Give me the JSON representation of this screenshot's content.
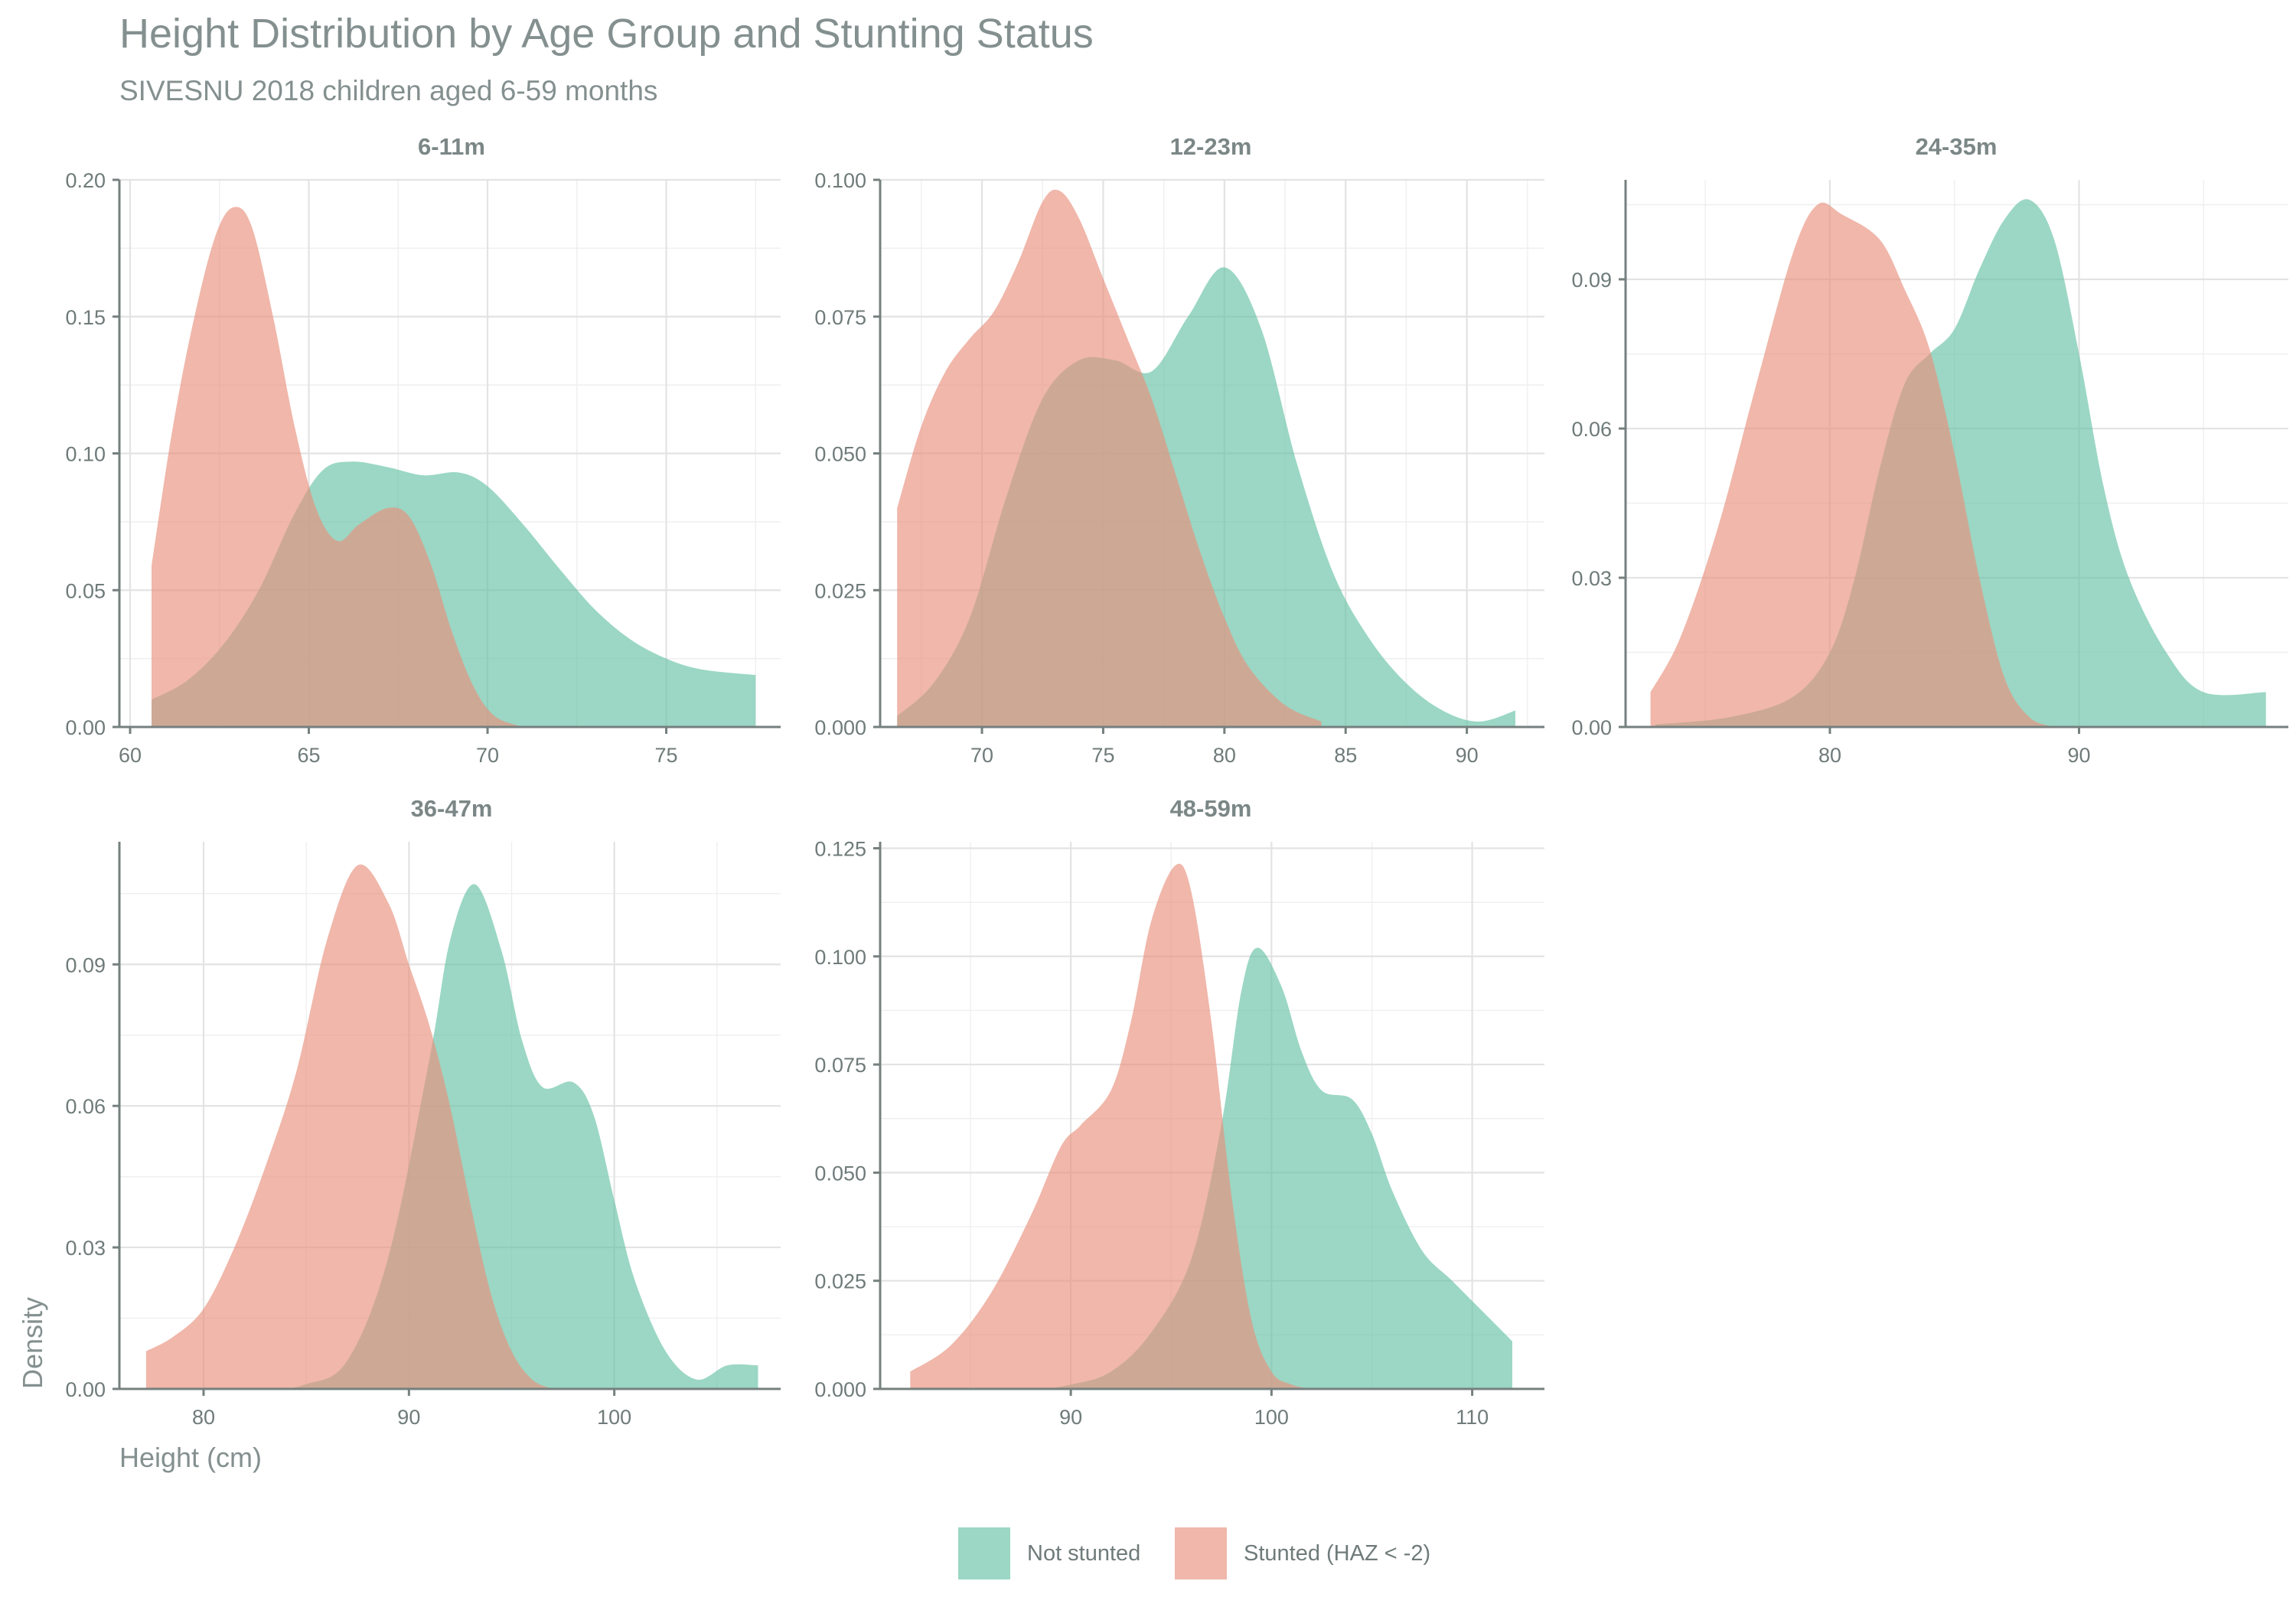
{
  "chart_data": {
    "type": "area",
    "title": "Height Distribution by Age Group and Stunting Status",
    "subtitle": "SIVESNU 2018 children aged 6-59 months",
    "xlabel": "Height (cm)",
    "ylabel": "Density",
    "grid": true,
    "legend_placement": "bottom",
    "series_names": [
      "Not stunted",
      "Stunted (HAZ < -2)"
    ],
    "colors": {
      "not_stunted": "#66c2a5",
      "stunted": "#e8907c",
      "axis": "#75807f",
      "text": "#84908f"
    },
    "panels": [
      {
        "label": "6-11m",
        "xlim": [
          59.7,
          78.2
        ],
        "ylim": [
          0,
          0.2
        ],
        "xticks": [
          60,
          65,
          70,
          75
        ],
        "yticks": [
          0,
          0.05,
          0.1,
          0.15,
          0.2
        ],
        "ytick_labels": [
          "0.00",
          "0.05",
          "0.10",
          "0.15",
          "0.20"
        ],
        "not_stunted": [
          [
            60.6,
            0.01
          ],
          [
            61.6,
            0.017
          ],
          [
            62.6,
            0.03
          ],
          [
            63.6,
            0.05
          ],
          [
            64.6,
            0.078
          ],
          [
            65.4,
            0.094
          ],
          [
            66.2,
            0.097
          ],
          [
            67.2,
            0.095
          ],
          [
            68.2,
            0.092
          ],
          [
            69.2,
            0.093
          ],
          [
            70.0,
            0.088
          ],
          [
            71.0,
            0.074
          ],
          [
            72.0,
            0.058
          ],
          [
            73.0,
            0.043
          ],
          [
            74.0,
            0.032
          ],
          [
            75.0,
            0.025
          ],
          [
            76.0,
            0.021
          ],
          [
            77.5,
            0.019
          ]
        ],
        "stunted": [
          [
            60.6,
            0.059
          ],
          [
            61.2,
            0.11
          ],
          [
            61.8,
            0.15
          ],
          [
            62.4,
            0.18
          ],
          [
            62.9,
            0.19
          ],
          [
            63.4,
            0.183
          ],
          [
            64.0,
            0.15
          ],
          [
            64.6,
            0.11
          ],
          [
            65.2,
            0.08
          ],
          [
            65.8,
            0.068
          ],
          [
            66.4,
            0.074
          ],
          [
            67.2,
            0.08
          ],
          [
            67.8,
            0.077
          ],
          [
            68.4,
            0.06
          ],
          [
            69.0,
            0.035
          ],
          [
            69.6,
            0.015
          ],
          [
            70.2,
            0.004
          ],
          [
            71.0,
            0.0
          ]
        ]
      },
      {
        "label": "12-23m",
        "xlim": [
          65.8,
          93.2
        ],
        "ylim": [
          0,
          0.1
        ],
        "xticks": [
          70,
          75,
          80,
          85,
          90
        ],
        "yticks": [
          0,
          0.025,
          0.05,
          0.075,
          0.1
        ],
        "ytick_labels": [
          "0.000",
          "0.025",
          "0.050",
          "0.075",
          "0.100"
        ],
        "not_stunted": [
          [
            66.5,
            0.002
          ],
          [
            68.0,
            0.008
          ],
          [
            69.5,
            0.02
          ],
          [
            71.0,
            0.042
          ],
          [
            72.5,
            0.06
          ],
          [
            74.0,
            0.067
          ],
          [
            75.5,
            0.067
          ],
          [
            77.0,
            0.065
          ],
          [
            78.5,
            0.075
          ],
          [
            80.0,
            0.084
          ],
          [
            81.5,
            0.073
          ],
          [
            83.0,
            0.048
          ],
          [
            84.5,
            0.028
          ],
          [
            86.0,
            0.016
          ],
          [
            87.5,
            0.008
          ],
          [
            89.0,
            0.003
          ],
          [
            90.5,
            0.001
          ],
          [
            92.0,
            0.003
          ]
        ],
        "stunted": [
          [
            66.5,
            0.04
          ],
          [
            67.5,
            0.055
          ],
          [
            68.5,
            0.065
          ],
          [
            69.5,
            0.071
          ],
          [
            70.5,
            0.076
          ],
          [
            71.5,
            0.085
          ],
          [
            72.5,
            0.096
          ],
          [
            73.2,
            0.098
          ],
          [
            74.0,
            0.093
          ],
          [
            75.0,
            0.082
          ],
          [
            76.0,
            0.071
          ],
          [
            77.0,
            0.06
          ],
          [
            78.0,
            0.046
          ],
          [
            79.0,
            0.032
          ],
          [
            80.0,
            0.02
          ],
          [
            81.0,
            0.011
          ],
          [
            82.5,
            0.004
          ],
          [
            84.0,
            0.001
          ]
        ]
      },
      {
        "label": "24-35m",
        "xlim": [
          71.8,
          98.4
        ],
        "ylim": [
          0,
          0.11
        ],
        "xticks": [
          80,
          90
        ],
        "yticks": [
          0,
          0.03,
          0.06,
          0.09
        ],
        "ytick_labels": [
          "0.00",
          "0.03",
          "0.06",
          "0.09"
        ],
        "not_stunted": [
          [
            73.0,
            0.0005
          ],
          [
            76.0,
            0.002
          ],
          [
            78.5,
            0.006
          ],
          [
            80.0,
            0.015
          ],
          [
            81.0,
            0.03
          ],
          [
            82.0,
            0.052
          ],
          [
            83.0,
            0.069
          ],
          [
            84.0,
            0.075
          ],
          [
            85.0,
            0.08
          ],
          [
            86.0,
            0.092
          ],
          [
            87.0,
            0.102
          ],
          [
            88.0,
            0.106
          ],
          [
            89.0,
            0.098
          ],
          [
            90.0,
            0.075
          ],
          [
            91.0,
            0.048
          ],
          [
            92.0,
            0.03
          ],
          [
            93.5,
            0.015
          ],
          [
            95.0,
            0.007
          ],
          [
            97.5,
            0.007
          ]
        ],
        "stunted": [
          [
            72.8,
            0.007
          ],
          [
            74.0,
            0.018
          ],
          [
            75.5,
            0.04
          ],
          [
            77.0,
            0.068
          ],
          [
            78.5,
            0.095
          ],
          [
            79.5,
            0.105
          ],
          [
            80.5,
            0.103
          ],
          [
            82.0,
            0.098
          ],
          [
            83.0,
            0.088
          ],
          [
            84.0,
            0.076
          ],
          [
            85.0,
            0.055
          ],
          [
            86.0,
            0.03
          ],
          [
            87.0,
            0.01
          ],
          [
            88.0,
            0.002
          ],
          [
            89.0,
            0.0
          ]
        ]
      },
      {
        "label": "36-47m",
        "xlim": [
          75.9,
          108.1
        ],
        "ylim": [
          0,
          0.116
        ],
        "xticks": [
          80,
          90,
          100
        ],
        "yticks": [
          0,
          0.03,
          0.06,
          0.09
        ],
        "ytick_labels": [
          "0.00",
          "0.03",
          "0.06",
          "0.09"
        ],
        "not_stunted": [
          [
            77.0,
            0.0
          ],
          [
            83.0,
            0.0
          ],
          [
            85.0,
            0.001
          ],
          [
            87.0,
            0.006
          ],
          [
            89.0,
            0.028
          ],
          [
            91.0,
            0.07
          ],
          [
            92.0,
            0.095
          ],
          [
            93.2,
            0.107
          ],
          [
            94.5,
            0.093
          ],
          [
            95.5,
            0.074
          ],
          [
            96.5,
            0.064
          ],
          [
            98.0,
            0.065
          ],
          [
            99.0,
            0.058
          ],
          [
            100.0,
            0.04
          ],
          [
            101.0,
            0.023
          ],
          [
            102.5,
            0.008
          ],
          [
            104.0,
            0.002
          ],
          [
            105.5,
            0.005
          ],
          [
            107.0,
            0.005
          ]
        ],
        "stunted": [
          [
            77.2,
            0.008
          ],
          [
            78.5,
            0.011
          ],
          [
            80.0,
            0.017
          ],
          [
            81.5,
            0.03
          ],
          [
            83.0,
            0.047
          ],
          [
            84.5,
            0.067
          ],
          [
            86.0,
            0.095
          ],
          [
            87.5,
            0.111
          ],
          [
            89.0,
            0.103
          ],
          [
            90.0,
            0.09
          ],
          [
            91.0,
            0.077
          ],
          [
            92.0,
            0.06
          ],
          [
            93.0,
            0.039
          ],
          [
            94.0,
            0.02
          ],
          [
            95.0,
            0.008
          ],
          [
            96.0,
            0.002
          ],
          [
            97.0,
            0.0
          ]
        ]
      },
      {
        "label": "48-59m",
        "xlim": [
          80.5,
          113.6
        ],
        "ylim": [
          0,
          0.1265
        ],
        "xticks": [
          90,
          100,
          110
        ],
        "yticks": [
          0,
          0.025,
          0.05,
          0.075,
          0.1,
          0.125
        ],
        "ytick_labels": [
          "0.000",
          "0.025",
          "0.050",
          "0.075",
          "0.100",
          "0.125"
        ],
        "not_stunted": [
          [
            82.0,
            0.0
          ],
          [
            88.0,
            0.0
          ],
          [
            90.0,
            0.001
          ],
          [
            92.0,
            0.004
          ],
          [
            94.0,
            0.013
          ],
          [
            96.0,
            0.03
          ],
          [
            97.5,
            0.061
          ],
          [
            98.5,
            0.092
          ],
          [
            99.3,
            0.102
          ],
          [
            100.5,
            0.093
          ],
          [
            101.5,
            0.078
          ],
          [
            102.5,
            0.069
          ],
          [
            104.0,
            0.067
          ],
          [
            105.0,
            0.059
          ],
          [
            106.0,
            0.046
          ],
          [
            107.5,
            0.032
          ],
          [
            109.0,
            0.025
          ],
          [
            110.5,
            0.018
          ],
          [
            112.0,
            0.011
          ]
        ],
        "stunted": [
          [
            82.0,
            0.004
          ],
          [
            84.0,
            0.01
          ],
          [
            86.0,
            0.022
          ],
          [
            88.0,
            0.04
          ],
          [
            89.5,
            0.056
          ],
          [
            90.5,
            0.061
          ],
          [
            92.0,
            0.069
          ],
          [
            93.0,
            0.085
          ],
          [
            94.0,
            0.108
          ],
          [
            95.2,
            0.121
          ],
          [
            96.0,
            0.115
          ],
          [
            97.0,
            0.085
          ],
          [
            98.0,
            0.045
          ],
          [
            99.0,
            0.016
          ],
          [
            100.0,
            0.004
          ],
          [
            101.0,
            0.001
          ],
          [
            102.0,
            0.0
          ]
        ]
      }
    ]
  }
}
